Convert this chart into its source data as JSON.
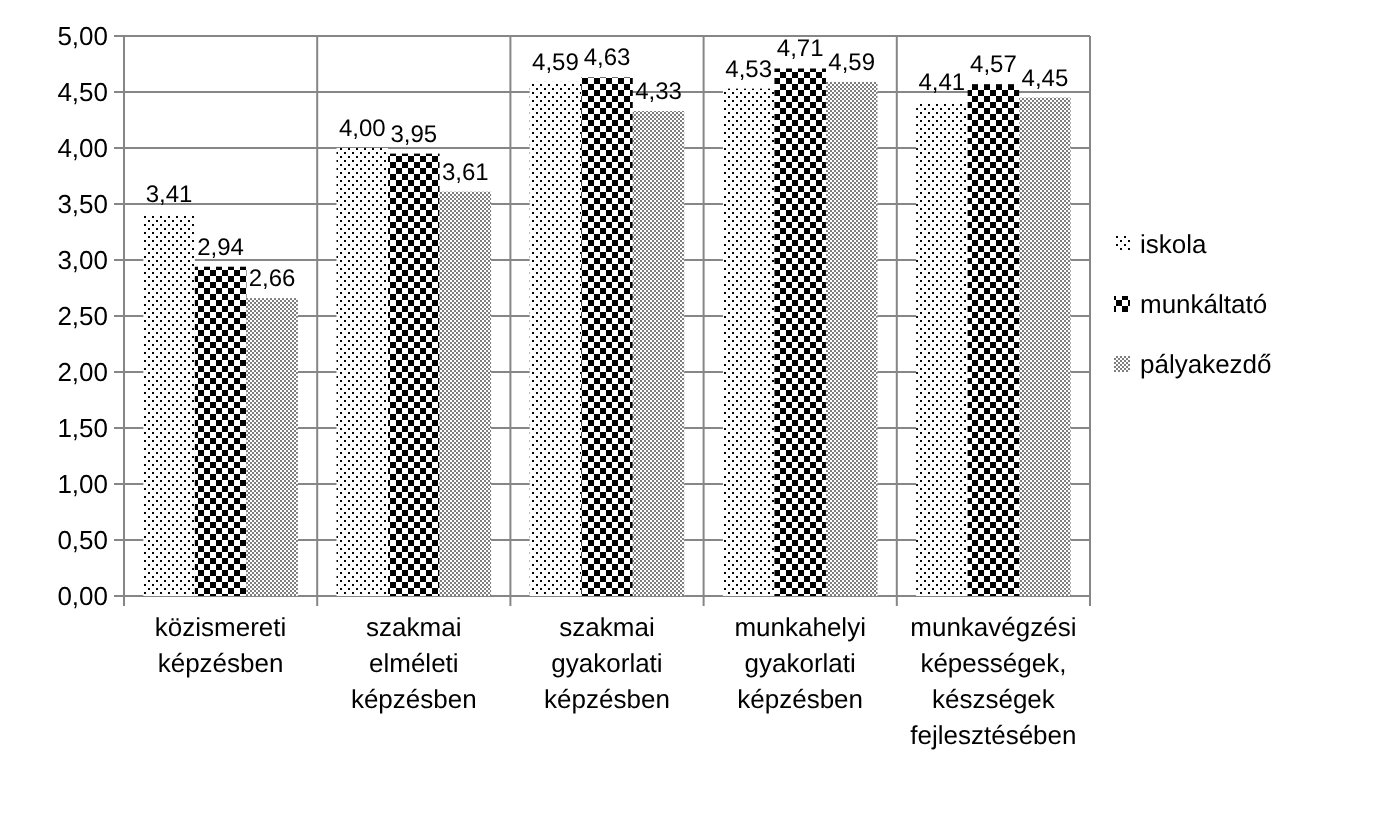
{
  "chart_data": {
    "type": "bar",
    "categories": [
      "közismereti képzésben",
      "szakmai elméleti képzésben",
      "szakmai gyakorlati képzésben",
      "munkahelyi gyakorlati képzésben",
      "munkavégzési képességek, készségek fejlesztésében"
    ],
    "series": [
      {
        "name": "iskola",
        "color": "#000000",
        "values": [
          3.41,
          4.0,
          4.59,
          4.53,
          4.41
        ],
        "value_labels": [
          "3,41",
          "4,00",
          "4,59",
          "4,53",
          "4,41"
        ]
      },
      {
        "name": "munkáltató",
        "color": "#000000",
        "values": [
          2.94,
          3.95,
          4.63,
          4.71,
          4.57
        ],
        "value_labels": [
          "2,94",
          "3,95",
          "4,63",
          "4,71",
          "4,57"
        ]
      },
      {
        "name": "pályakezdő",
        "color": "#7f7f7f",
        "values": [
          2.66,
          3.61,
          4.33,
          4.59,
          4.45
        ],
        "value_labels": [
          "2,66",
          "3,61",
          "4,33",
          "4,59",
          "4,45"
        ]
      }
    ],
    "ylim": [
      0,
      5
    ],
    "yticks": [
      {
        "value": 0,
        "label": "0,00"
      },
      {
        "value": 0.5,
        "label": "0,50"
      },
      {
        "value": 1,
        "label": "1,00"
      },
      {
        "value": 1.5,
        "label": "1,50"
      },
      {
        "value": 2,
        "label": "2,00"
      },
      {
        "value": 2.5,
        "label": "2,50"
      },
      {
        "value": 3,
        "label": "3,00"
      },
      {
        "value": 3.5,
        "label": "3,50"
      },
      {
        "value": 4,
        "label": "4,00"
      },
      {
        "value": 4.5,
        "label": "4,50"
      },
      {
        "value": 5,
        "label": "5,00"
      }
    ],
    "grid": true,
    "legend": "right"
  }
}
